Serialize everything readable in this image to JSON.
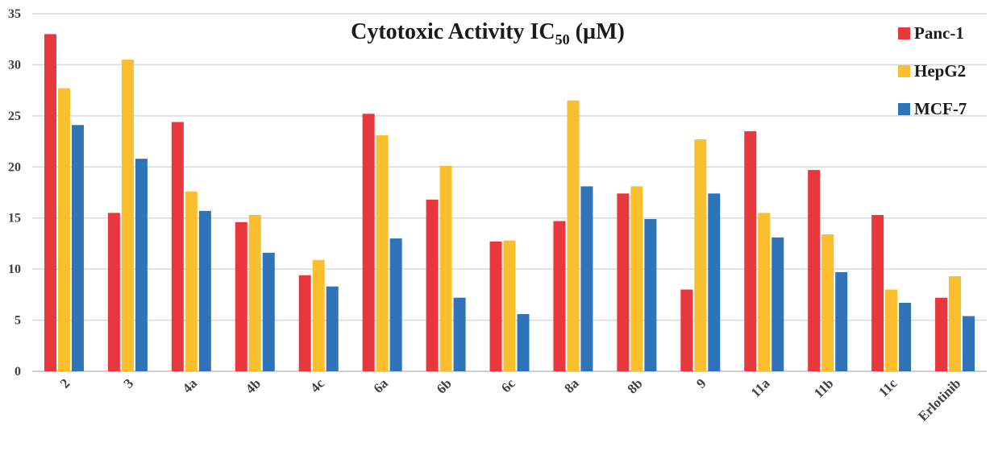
{
  "chart_data": {
    "type": "bar",
    "title": "Cytotoxic Activity IC",
    "title_subscript": "50",
    "title_suffix": " (µM)",
    "xlabel": "",
    "ylabel": "",
    "ylim": [
      0,
      35
    ],
    "yticks": [
      0,
      5,
      10,
      15,
      20,
      25,
      30,
      35
    ],
    "grid": true,
    "legend_position": "top-right",
    "categories": [
      "2",
      "3",
      "4a",
      "4b",
      "4c",
      "6a",
      "6b",
      "6c",
      "8a",
      "8b",
      "9",
      "11a",
      "11b",
      "11c",
      "Erlotinib"
    ],
    "series": [
      {
        "name": "Panc-1",
        "color": "#e8383d",
        "values": [
          33.0,
          15.5,
          24.4,
          14.6,
          9.4,
          25.2,
          16.8,
          12.7,
          14.7,
          17.4,
          8.0,
          23.5,
          19.7,
          15.3,
          7.2
        ]
      },
      {
        "name": "HepG2",
        "color": "#fbbf2d",
        "values": [
          27.7,
          30.5,
          17.6,
          15.3,
          10.9,
          23.1,
          20.1,
          12.8,
          26.5,
          18.1,
          22.7,
          15.5,
          13.4,
          8.0,
          9.3
        ]
      },
      {
        "name": "MCF-7",
        "color": "#2f73b8",
        "values": [
          24.1,
          20.8,
          15.7,
          11.6,
          8.3,
          13.0,
          7.2,
          5.6,
          18.1,
          14.9,
          17.4,
          13.1,
          9.7,
          6.7,
          5.4
        ]
      }
    ]
  }
}
